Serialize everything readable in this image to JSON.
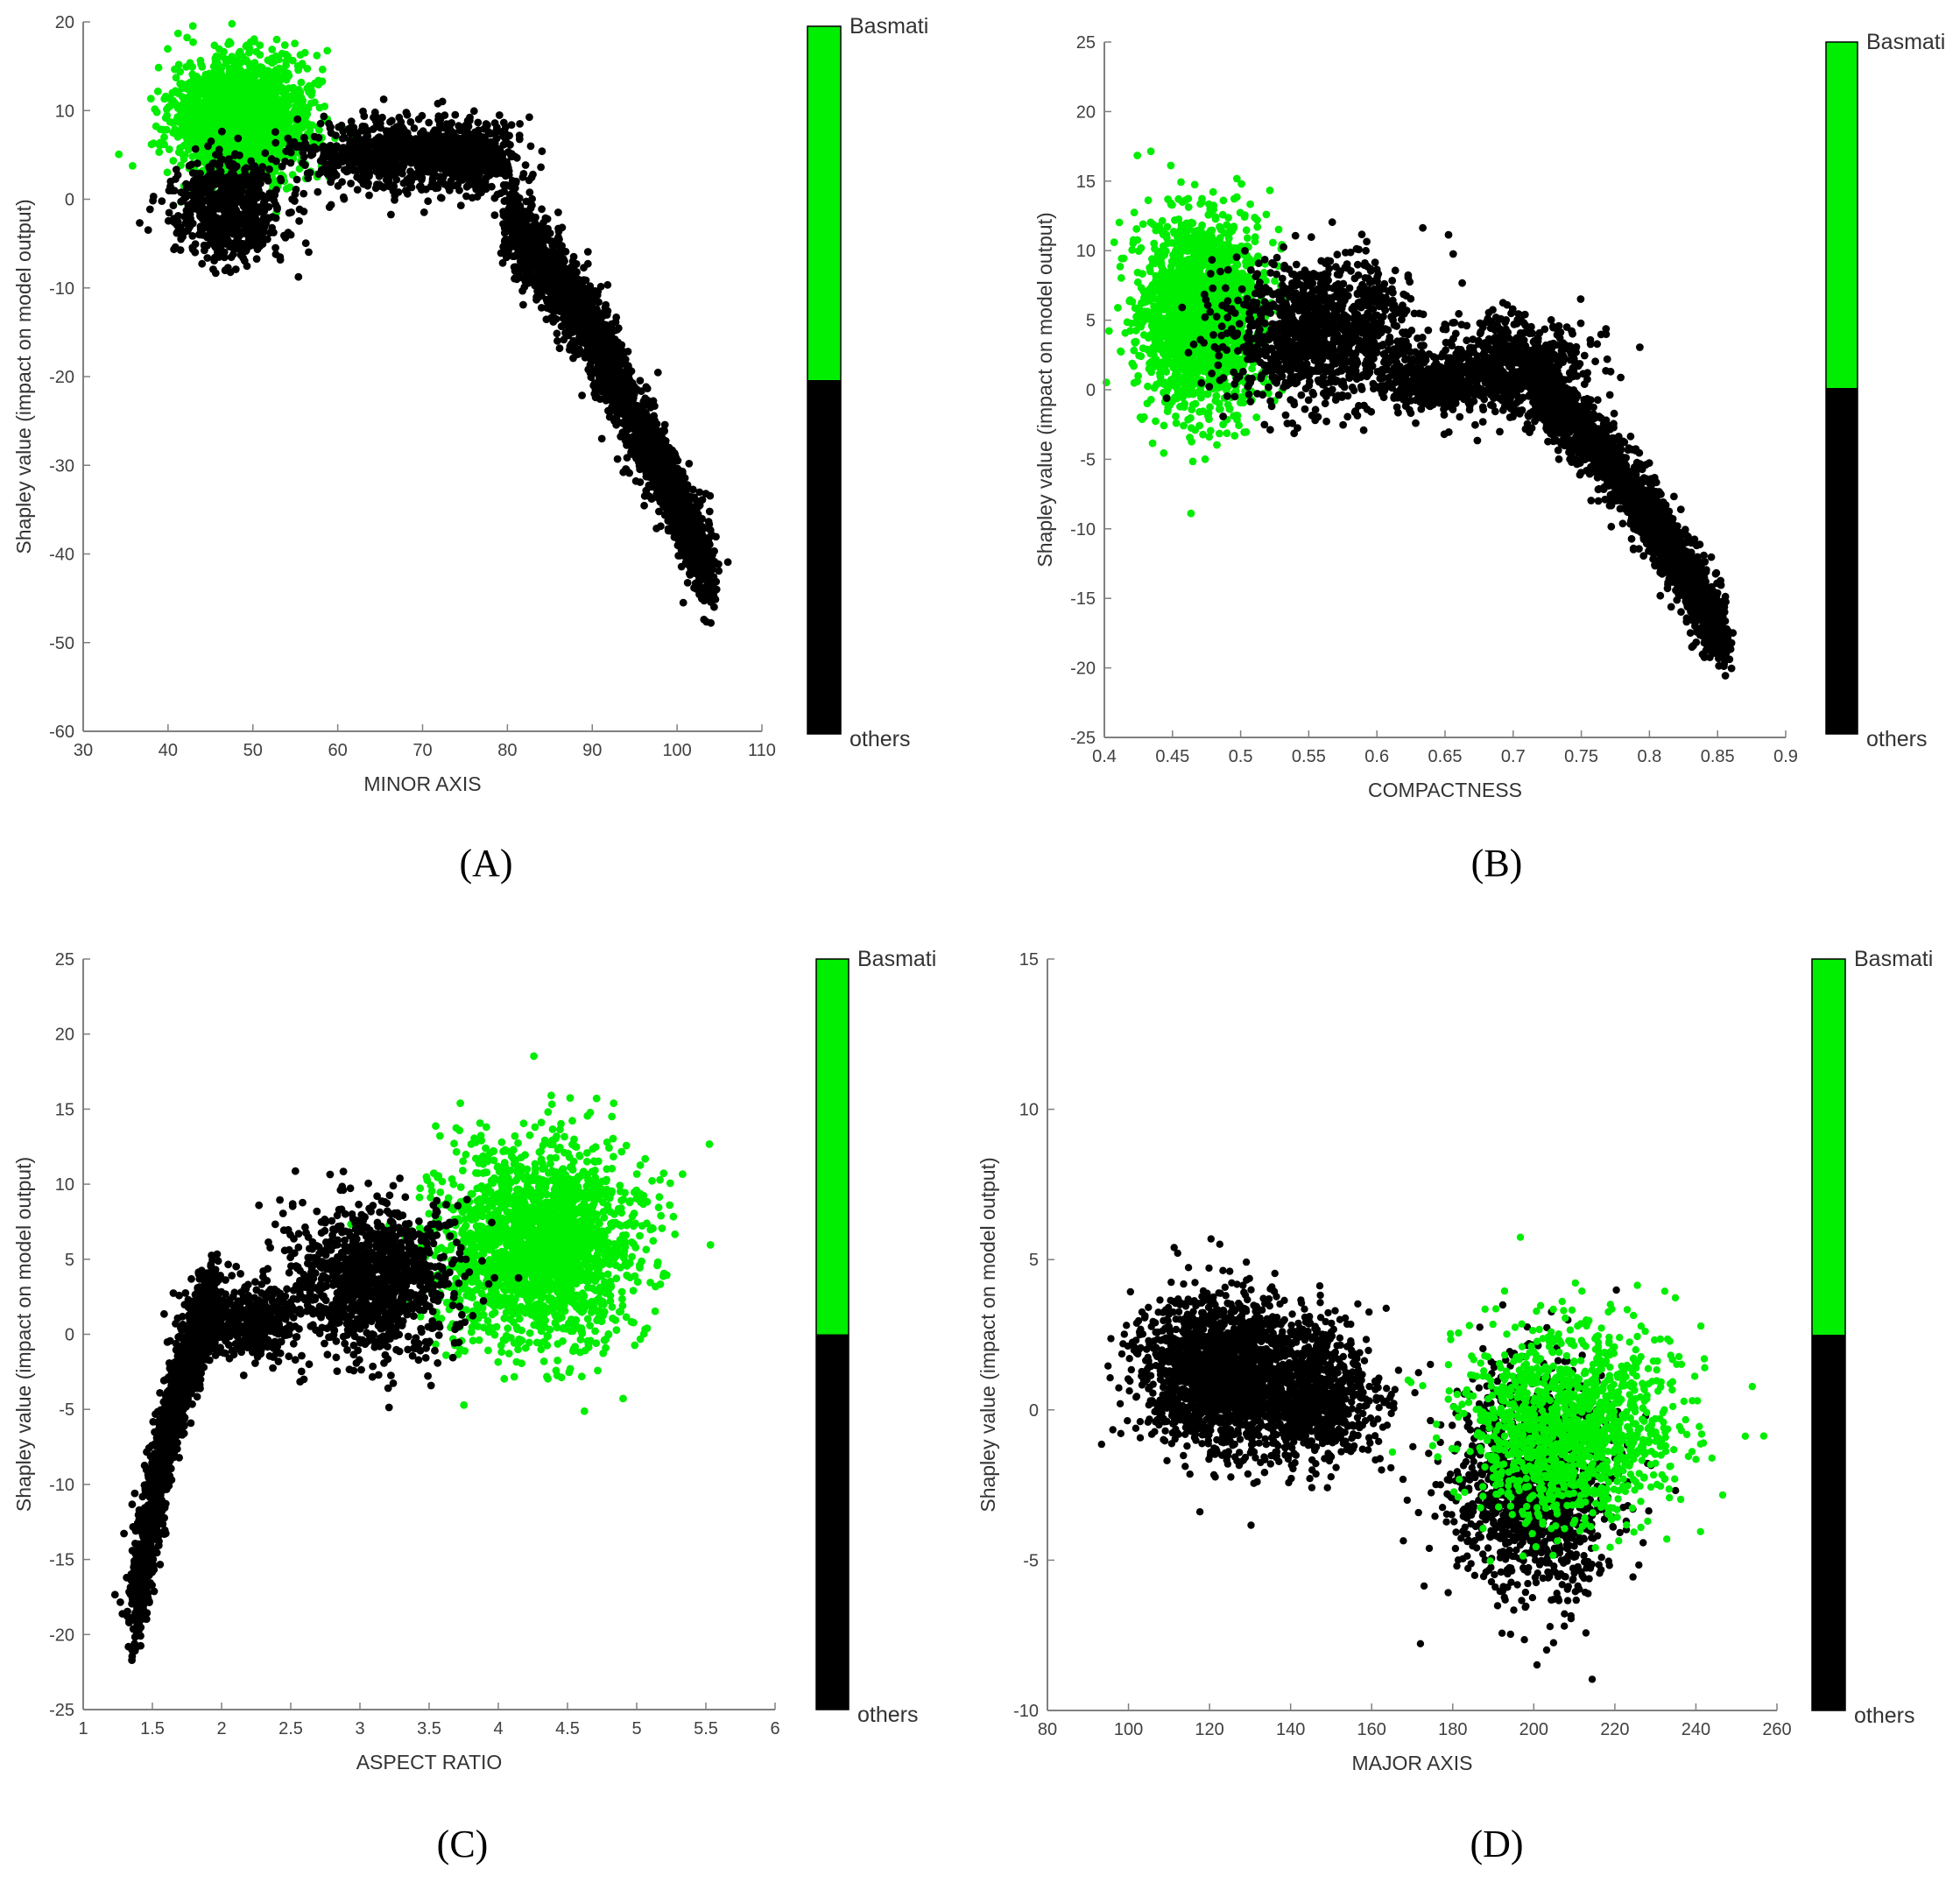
{
  "colors": {
    "basmati": "#00ee00",
    "others": "#000000",
    "axis": "#808080"
  },
  "colorbar": {
    "top_label": "Basmati",
    "bottom_label": "others"
  },
  "chart_data": [
    {
      "panel": "(A)",
      "type": "scatter",
      "title": "",
      "xlabel": "MINOR AXIS",
      "ylabel": "Shapley value (impact on model output)",
      "xlim": [
        30,
        110
      ],
      "ylim": [
        -60,
        20
      ],
      "xticks": [
        30,
        40,
        50,
        60,
        70,
        80,
        90,
        100,
        110
      ],
      "yticks": [
        -60,
        -50,
        -40,
        -30,
        -20,
        -10,
        0,
        10,
        20
      ],
      "grid": false,
      "series": [
        {
          "name": "Basmati",
          "color": "#00ee00",
          "clusters": [
            {
              "cx": 48.5,
              "cy": 9,
              "sx": 3.8,
              "sy": 3.2,
              "n": 2200
            }
          ]
        },
        {
          "name": "others",
          "color": "#000000",
          "clusters": [
            {
              "cx": 47,
              "cy": -1,
              "sx": 3,
              "sy": 2.8,
              "n": 700
            },
            {
              "cx": 65,
              "cy": 5,
              "sx": 5,
              "sy": 2,
              "n": 600
            },
            {
              "cx": 75,
              "cy": 5,
              "sx": 3,
              "sy": 2,
              "n": 500
            },
            {
              "path": [
                [
                  80,
                  -2
                ],
                [
                  85,
                  -8
                ],
                [
                  90,
                  -15
                ],
                [
                  95,
                  -25
                ],
                [
                  100,
                  -34
                ],
                [
                  104,
                  -43
                ]
              ],
              "sy": 2.3,
              "n": 2400
            }
          ]
        }
      ]
    },
    {
      "panel": "(B)",
      "type": "scatter",
      "title": "",
      "xlabel": "COMPACTNESS",
      "ylabel": "Shapley value (impact on model output)",
      "xlim": [
        0.4,
        0.9
      ],
      "ylim": [
        -25,
        25
      ],
      "xticks": [
        0.4,
        0.45,
        0.5,
        0.55,
        0.6,
        0.65,
        0.7,
        0.75,
        0.8,
        0.85,
        0.9
      ],
      "yticks": [
        -25,
        -20,
        -15,
        -10,
        -5,
        0,
        5,
        10,
        15,
        20,
        25
      ],
      "grid": false,
      "series": [
        {
          "name": "Basmati",
          "color": "#00ee00",
          "clusters": [
            {
              "cx": 0.47,
              "cy": 5.5,
              "sx": 0.022,
              "sy": 3.5,
              "n": 1900
            }
          ]
        },
        {
          "name": "others",
          "color": "#000000",
          "clusters": [
            {
              "cx": 0.56,
              "cy": 4,
              "sx": 0.035,
              "sy": 2.5,
              "n": 1200
            },
            {
              "cx": 0.64,
              "cy": 0.5,
              "sx": 0.02,
              "sy": 1,
              "n": 300
            },
            {
              "cx": 0.7,
              "cy": 1.5,
              "sx": 0.025,
              "sy": 1.8,
              "n": 700
            },
            {
              "path": [
                [
                  0.72,
                  0
                ],
                [
                  0.76,
                  -4
                ],
                [
                  0.8,
                  -9
                ],
                [
                  0.83,
                  -14
                ],
                [
                  0.855,
                  -18
                ]
              ],
              "sy": 1.3,
              "n": 1800
            }
          ]
        }
      ]
    },
    {
      "panel": "(C)",
      "type": "scatter",
      "title": "",
      "xlabel": "ASPECT RATIO",
      "ylabel": "Shapley value (impact on model output)",
      "xlim": [
        1,
        6
      ],
      "ylim": [
        -25,
        25
      ],
      "xticks": [
        1,
        1.5,
        2,
        2.5,
        3,
        3.5,
        4,
        4.5,
        5,
        5.5,
        6
      ],
      "yticks": [
        -25,
        -20,
        -15,
        -10,
        -5,
        0,
        5,
        10,
        15,
        20,
        25
      ],
      "grid": false,
      "series": [
        {
          "name": "Basmati",
          "color": "#00ee00",
          "clusters": [
            {
              "cx": 4.3,
              "cy": 6,
              "sx": 0.35,
              "sy": 3.3,
              "n": 2100
            }
          ]
        },
        {
          "name": "others",
          "color": "#000000",
          "clusters": [
            {
              "path": [
                [
                  1.38,
                  -19
                ],
                [
                  1.45,
                  -14
                ],
                [
                  1.55,
                  -9
                ],
                [
                  1.65,
                  -5
                ],
                [
                  1.75,
                  -2
                ],
                [
                  1.85,
                  1
                ],
                [
                  1.95,
                  2.5
                ]
              ],
              "sy": 1.3,
              "n": 1500
            },
            {
              "cx": 2.2,
              "cy": 0.8,
              "sx": 0.2,
              "sy": 1.2,
              "n": 400
            },
            {
              "cx": 3.1,
              "cy": 3.5,
              "sx": 0.3,
              "sy": 2.5,
              "n": 1100
            }
          ]
        }
      ]
    },
    {
      "panel": "(D)",
      "type": "scatter",
      "title": "",
      "xlabel": "MAJOR AXIS",
      "ylabel": "Shapley value (impact on model output)",
      "xlim": [
        80,
        260
      ],
      "ylim": [
        -10,
        15
      ],
      "xticks": [
        80,
        100,
        120,
        140,
        160,
        180,
        200,
        220,
        240,
        260
      ],
      "yticks": [
        -10,
        -5,
        0,
        5,
        10,
        15
      ],
      "grid": false,
      "series": [
        {
          "name": "others",
          "color": "#000000",
          "clusters": [
            {
              "cx": 122,
              "cy": 1.3,
              "sx": 9,
              "sy": 1.3,
              "n": 1800
            },
            {
              "cx": 145,
              "cy": 0.5,
              "sx": 8,
              "sy": 1.2,
              "n": 900
            },
            {
              "cx": 200,
              "cy": -2.5,
              "sx": 10,
              "sy": 1.8,
              "n": 1400
            }
          ]
        },
        {
          "name": "Basmati",
          "color": "#00ee00",
          "clusters": [
            {
              "cx": 210,
              "cy": -0.5,
              "sx": 13,
              "sy": 1.6,
              "n": 1300
            }
          ]
        }
      ]
    }
  ],
  "panel_labels": [
    "(A)",
    "(B)",
    "(C)",
    "(D)"
  ]
}
